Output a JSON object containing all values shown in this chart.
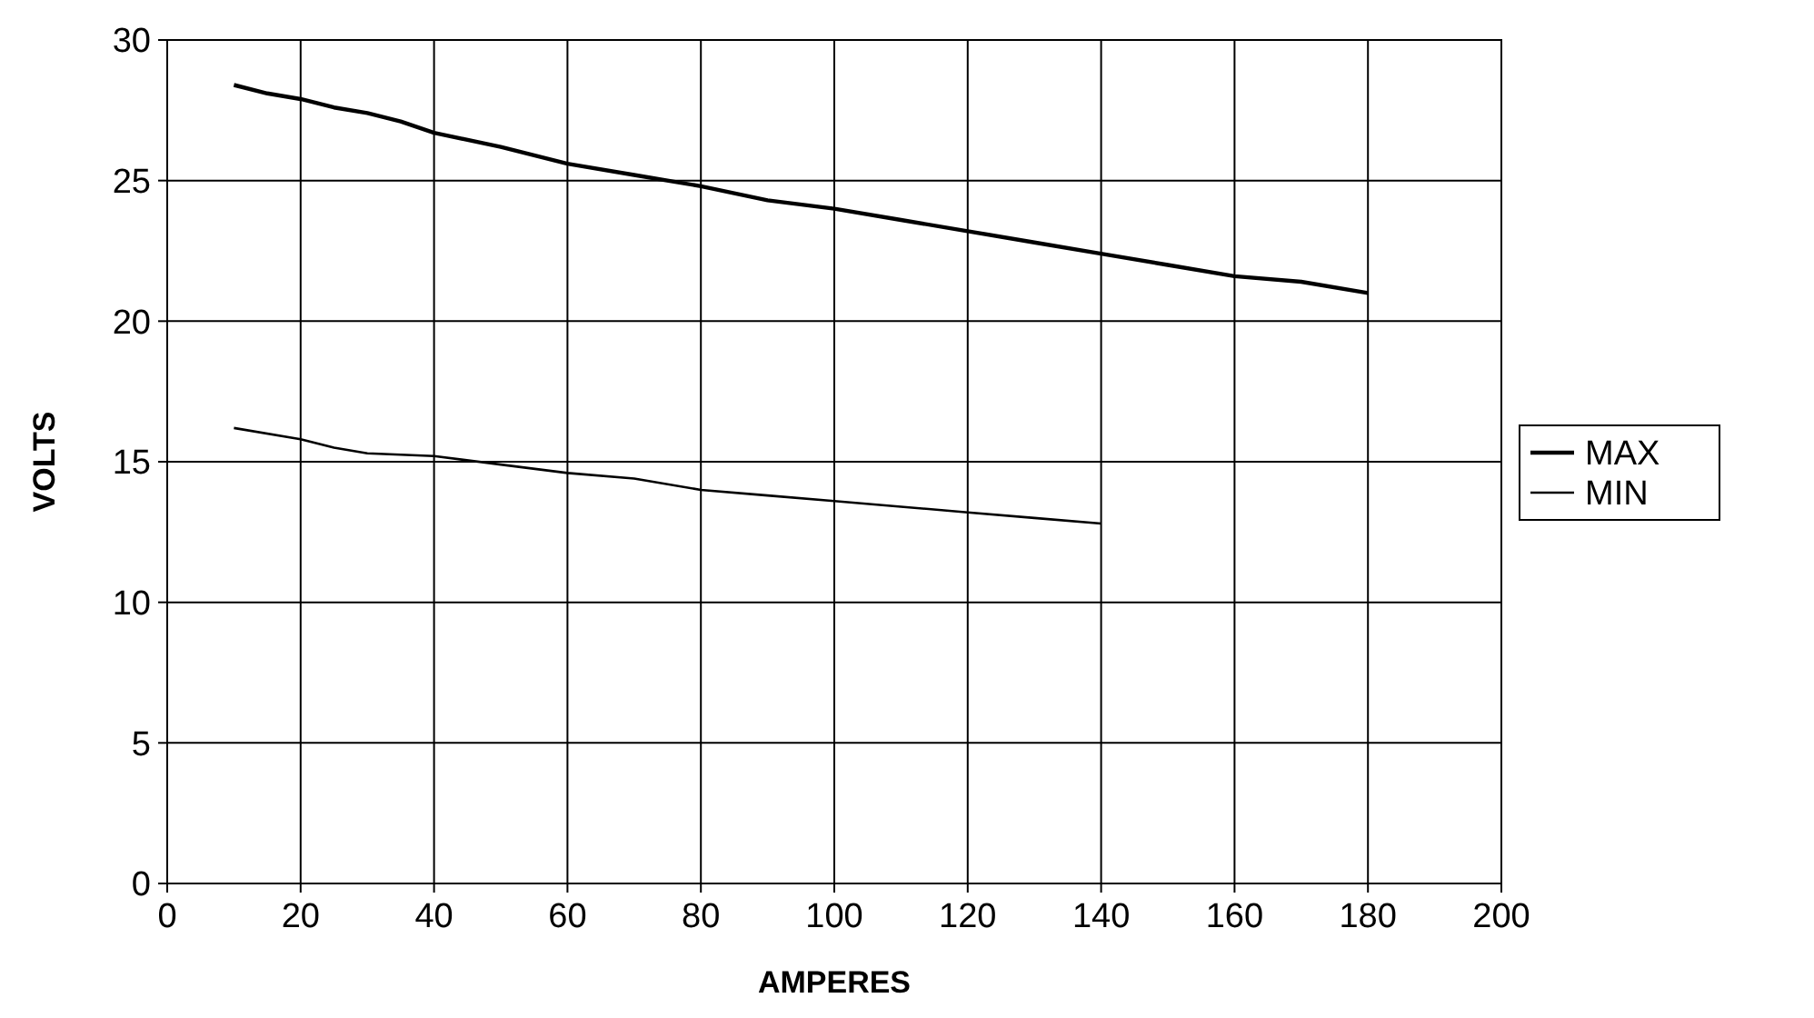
{
  "chart_data": {
    "type": "line",
    "xlabel": "AMPERES",
    "ylabel": "VOLTS",
    "xlim": [
      0,
      200
    ],
    "xticks": [
      0,
      20,
      40,
      60,
      80,
      100,
      120,
      140,
      160,
      180,
      200
    ],
    "ylim": [
      0,
      30
    ],
    "yticks": [
      0,
      5,
      10,
      15,
      20,
      25,
      30
    ],
    "grid": true,
    "legend": "right",
    "marker": "none",
    "series": [
      {
        "name": "MAX",
        "color": "#000000",
        "x": [
          10,
          15,
          20,
          25,
          30,
          35,
          40,
          50,
          60,
          70,
          80,
          90,
          100,
          110,
          120,
          130,
          140,
          150,
          160,
          170,
          180
        ],
        "values": [
          28.4,
          28.1,
          27.9,
          27.6,
          27.4,
          27.1,
          26.7,
          26.2,
          25.6,
          25.2,
          24.8,
          24.3,
          24.0,
          23.6,
          23.2,
          22.8,
          22.4,
          22.0,
          21.6,
          21.4,
          21.0
        ]
      },
      {
        "name": "MIN",
        "color": "#000000",
        "x": [
          10,
          20,
          25,
          30,
          40,
          50,
          60,
          70,
          80,
          90,
          100,
          110,
          120,
          130,
          140
        ],
        "values": [
          16.2,
          15.8,
          15.5,
          15.3,
          15.2,
          14.9,
          14.6,
          14.4,
          14.0,
          13.8,
          13.6,
          13.4,
          13.2,
          13.0,
          12.8
        ]
      }
    ]
  }
}
